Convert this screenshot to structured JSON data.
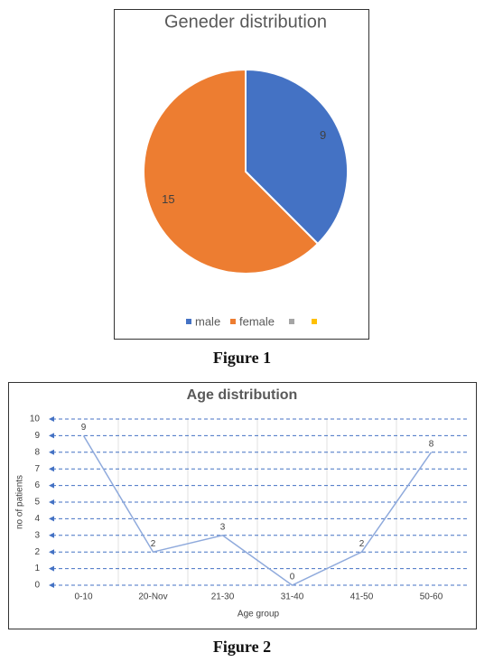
{
  "chart_data": [
    {
      "type": "pie",
      "title": "Geneder distribution",
      "categories": [
        "male",
        "female",
        null,
        null
      ],
      "values": [
        9,
        15,
        null,
        null
      ],
      "colors": [
        "#4472c4",
        "#ed7d31",
        "#a5a5a5",
        "#ffc000"
      ],
      "legend": "bottom"
    },
    {
      "type": "line",
      "title": "Age distribution",
      "categories": [
        "0-10",
        "20-Nov",
        "21-30",
        "31-40",
        "41-50",
        "50-60"
      ],
      "values": [
        9,
        2,
        3,
        0,
        2,
        8
      ],
      "color": "#8faadc",
      "xlabel": "Age group",
      "ylabel": "no of patients",
      "ylim": [
        0,
        10
      ],
      "yticks": [
        0,
        1,
        2,
        3,
        4,
        5,
        6,
        7,
        8,
        9,
        10
      ],
      "grid": true
    }
  ],
  "captions": [
    "Figure 1",
    "Figure 2"
  ]
}
